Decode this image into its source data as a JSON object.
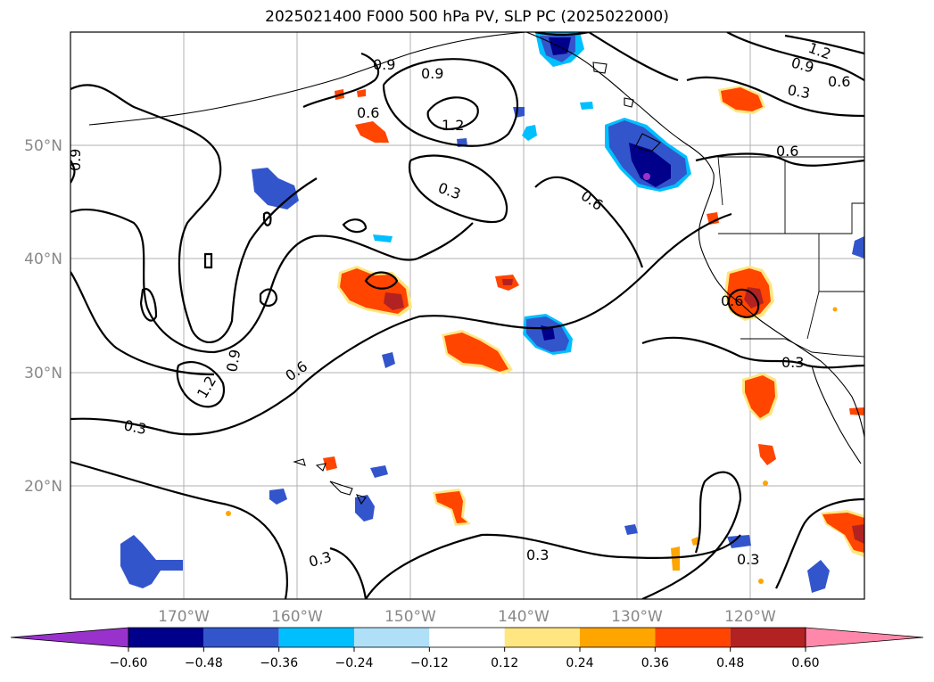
{
  "title": "2025021400 F000 500 hPa PV, SLP PC (2025022000)",
  "map": {
    "lat_labels": [
      "50°N",
      "40°N",
      "30°N",
      "20°N"
    ],
    "lon_labels": [
      "170°W",
      "160°W",
      "150°W",
      "140°W",
      "130°W",
      "120°W"
    ],
    "contour_labels": [
      "0.9",
      "0.9",
      "1.2",
      "0.6",
      "0.3",
      "0.6",
      "1.2",
      "0.9",
      "0.6",
      "0.3",
      "0.9",
      "0.6",
      "0.6",
      "0.3",
      "1.2",
      "0.9",
      "0.6",
      "0.3",
      "0.3",
      "0.3",
      "0.3"
    ]
  },
  "colorbar": {
    "ticks": [
      "−0.60",
      "−0.48",
      "−0.36",
      "−0.24",
      "−0.12",
      "0.12",
      "0.24",
      "0.36",
      "0.48",
      "0.60"
    ],
    "colors": [
      "#9932cc",
      "#00008b",
      "#3355cc",
      "#00bfff",
      "#b0e0f8",
      "#ffffff",
      "#ffe680",
      "#ffa500",
      "#ff4500",
      "#b22222",
      "#ff88aa"
    ]
  }
}
